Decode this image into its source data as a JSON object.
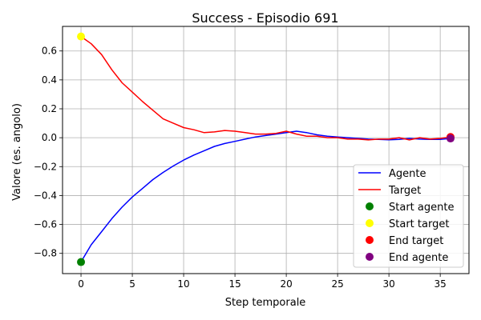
{
  "chart_data": {
    "type": "line",
    "title": "Success - Episodio 691",
    "xlabel": "Step temporale",
    "ylabel": "Valore (es. angolo)",
    "xlim": [
      -1.8,
      37.8
    ],
    "ylim": [
      -0.94,
      0.77
    ],
    "xticks": [
      0,
      5,
      10,
      15,
      20,
      25,
      30,
      35
    ],
    "yticks": [
      -0.8,
      -0.6,
      -0.4,
      -0.2,
      0.0,
      0.2,
      0.4,
      0.6
    ],
    "xtick_labels": [
      "0",
      "5",
      "10",
      "15",
      "20",
      "25",
      "30",
      "35"
    ],
    "ytick_labels": [
      "−0.8",
      "−0.6",
      "−0.4",
      "−0.2",
      "0.0",
      "0.2",
      "0.4",
      "0.6"
    ],
    "grid": true,
    "legend_position": "lower-right",
    "series": [
      {
        "name": "Agente",
        "color": "#0000ff",
        "x": [
          0,
          1,
          2,
          3,
          4,
          5,
          6,
          7,
          8,
          9,
          10,
          11,
          12,
          13,
          14,
          15,
          16,
          17,
          18,
          19,
          20,
          21,
          22,
          23,
          24,
          25,
          26,
          27,
          28,
          29,
          30,
          31,
          32,
          33,
          34,
          35,
          36
        ],
        "y": [
          -0.86,
          -0.74,
          -0.65,
          -0.56,
          -0.48,
          -0.41,
          -0.35,
          -0.29,
          -0.24,
          -0.195,
          -0.155,
          -0.12,
          -0.09,
          -0.06,
          -0.04,
          -0.025,
          -0.01,
          0.005,
          0.015,
          0.025,
          0.035,
          0.045,
          0.035,
          0.02,
          0.01,
          0.005,
          0.0,
          -0.005,
          -0.01,
          -0.012,
          -0.014,
          -0.012,
          -0.005,
          -0.01,
          -0.012,
          -0.012,
          -0.005
        ]
      },
      {
        "name": "Target",
        "color": "#ff0000",
        "x": [
          0,
          1,
          2,
          3,
          4,
          5,
          6,
          7,
          8,
          9,
          10,
          11,
          12,
          13,
          14,
          15,
          16,
          17,
          18,
          19,
          20,
          21,
          22,
          23,
          24,
          25,
          26,
          27,
          28,
          29,
          30,
          31,
          32,
          33,
          34,
          35,
          36
        ],
        "y": [
          0.7,
          0.65,
          0.575,
          0.47,
          0.38,
          0.315,
          0.25,
          0.19,
          0.13,
          0.1,
          0.07,
          0.055,
          0.035,
          0.04,
          0.05,
          0.045,
          0.035,
          0.025,
          0.025,
          0.03,
          0.045,
          0.025,
          0.01,
          0.01,
          0.0,
          0.0,
          -0.01,
          -0.01,
          -0.015,
          -0.01,
          -0.01,
          0.0,
          -0.015,
          0.0,
          -0.01,
          -0.005,
          0.005
        ]
      }
    ],
    "markers": [
      {
        "name": "Start agente",
        "color": "#008000",
        "x": 0,
        "y": -0.86
      },
      {
        "name": "Start target",
        "color": "#ffff00",
        "x": 0,
        "y": 0.7
      },
      {
        "name": "End target",
        "color": "#ff0000",
        "x": 36,
        "y": 0.005
      },
      {
        "name": "End agente",
        "color": "#800080",
        "x": 36,
        "y": -0.005
      }
    ]
  }
}
